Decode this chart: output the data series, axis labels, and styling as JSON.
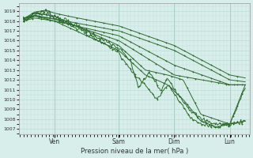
{
  "bg_color": "#d8eeea",
  "grid_color": "#b8d8d0",
  "line_color": "#2d6b2d",
  "title": "Pression niveau de la mer( hPa )",
  "ylim": [
    1006.5,
    1019.8
  ],
  "yticks": [
    1007,
    1008,
    1009,
    1010,
    1011,
    1012,
    1013,
    1014,
    1015,
    1016,
    1017,
    1018,
    1019
  ],
  "xtick_labels": [
    "Ven",
    "Sam",
    "Dim",
    "Lun"
  ],
  "xtick_positions": [
    0.14,
    0.43,
    0.68,
    0.93
  ],
  "line_width": 0.7,
  "marker_size": 2.0
}
